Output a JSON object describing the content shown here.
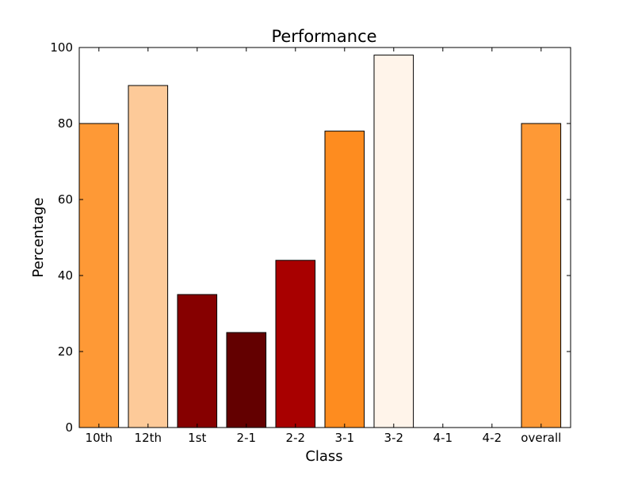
{
  "chart_data": {
    "type": "bar",
    "title": "Performance",
    "xlabel": "Class",
    "ylabel": "Percentage",
    "ylim": [
      0,
      100
    ],
    "yticks": [
      0,
      20,
      40,
      60,
      80,
      100
    ],
    "categories": [
      "10th",
      "12th",
      "1st",
      "2-1",
      "2-2",
      "3-1",
      "3-2",
      "4-1",
      "4-2",
      "overall"
    ],
    "values": [
      80,
      90,
      35,
      25,
      44,
      78,
      98,
      0,
      0,
      80
    ],
    "colors": [
      "#fe9936",
      "#fdca99",
      "#860000",
      "#630000",
      "#a80000",
      "#fe8c1f",
      "#fff4ea",
      "#ffffff",
      "#ffffff",
      "#fe9936"
    ],
    "grid": false,
    "legend": "none"
  }
}
